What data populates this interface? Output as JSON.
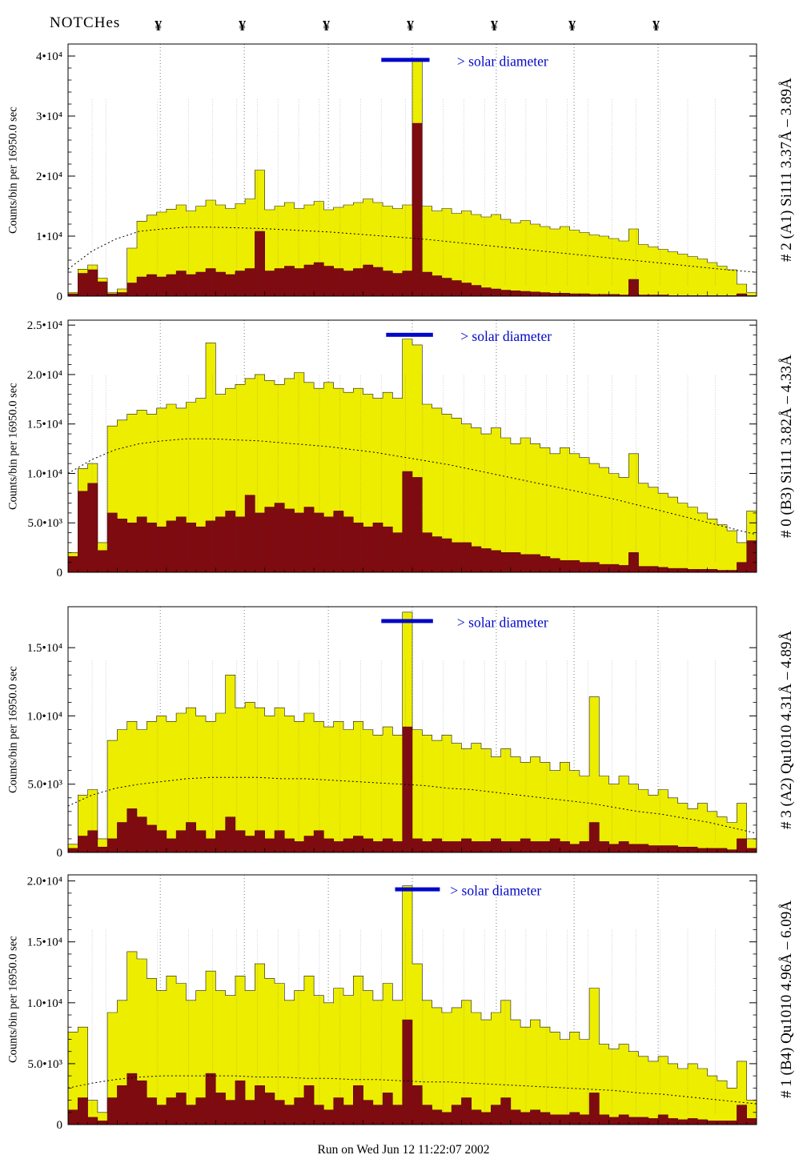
{
  "header": {
    "notches_label": "NOTCHes",
    "notch_symbol": "¥",
    "notch_positions": [
      0.134,
      0.256,
      0.378,
      0.5,
      0.622,
      0.735,
      0.857
    ]
  },
  "solar": {
    "label": "> solar diameter",
    "color": "#0008c8"
  },
  "footer": {
    "caption": "Run on Wed Jun 12 11:22:07 2002"
  },
  "colors": {
    "yellow_fill": "#eded00",
    "dark_red_fill": "#7e0b10",
    "outline": "#1a1a1a",
    "notch_line": "#777777",
    "annotation_mark": "#3a3a9a"
  },
  "annotation_columns": [
    0.035,
    0.055,
    0.13,
    0.175,
    0.21,
    0.245,
    0.275,
    0.305,
    0.335,
    0.365,
    0.395,
    0.425,
    0.455,
    0.49,
    0.515,
    0.545,
    0.575,
    0.605,
    0.635,
    0.665,
    0.695,
    0.725,
    0.755,
    0.79,
    0.825,
    0.86,
    0.9,
    0.94
  ],
  "chart_data": [
    {
      "type": "bar",
      "title": "# 2 (A1) Si111  3.37Å – 3.89Å",
      "ylabel": "Counts/bin per  16950.0 sec",
      "xlabel": "",
      "ylim": [
        0,
        42000
      ],
      "values_scale": 1000,
      "grid": "notch-verticals-only",
      "yticks": [
        {
          "value": 0,
          "label": "0"
        },
        {
          "value": 10,
          "label": "1•10⁴"
        },
        {
          "value": 20,
          "label": "2•10⁴"
        },
        {
          "value": 30,
          "label": "3•10⁴"
        },
        {
          "value": 40,
          "label": "4•10⁴"
        }
      ],
      "solar_bar": {
        "x0": 0.455,
        "x1": 0.525,
        "label_x": 0.565,
        "y_frac": 0.055
      },
      "series": [
        {
          "name": "total-histogram",
          "color": "#eded00",
          "values": [
            0.6,
            4.5,
            5.2,
            3.0,
            0.6,
            1.2,
            8.0,
            12.5,
            13.5,
            14.0,
            14.5,
            15.2,
            14.2,
            15.0,
            16.0,
            15.2,
            14.6,
            15.4,
            16.2,
            21.0,
            14.4,
            15.0,
            15.6,
            14.6,
            15.2,
            15.8,
            14.4,
            14.8,
            15.2,
            15.6,
            16.2,
            15.6,
            15.0,
            14.6,
            15.2,
            39.5,
            15.0,
            14.2,
            14.6,
            13.8,
            14.2,
            13.6,
            13.2,
            13.6,
            12.8,
            12.2,
            12.6,
            12.0,
            11.6,
            11.2,
            11.6,
            11.0,
            10.6,
            10.2,
            10.0,
            9.6,
            9.2,
            11.2,
            8.6,
            8.2,
            7.8,
            7.4,
            7.0,
            6.6,
            6.2,
            5.6,
            5.0,
            4.4,
            2.0,
            0.6
          ]
        },
        {
          "name": "background-histogram",
          "color": "#7e0b10",
          "values": [
            0.4,
            3.8,
            4.4,
            2.4,
            0.4,
            0.6,
            2.2,
            3.2,
            3.6,
            3.2,
            3.6,
            4.2,
            3.6,
            4.0,
            4.6,
            4.0,
            3.6,
            4.2,
            4.6,
            10.8,
            4.2,
            4.6,
            5.0,
            4.6,
            5.2,
            5.6,
            5.0,
            4.6,
            4.2,
            4.6,
            5.2,
            4.8,
            4.2,
            3.8,
            4.2,
            28.8,
            4.0,
            3.4,
            3.0,
            2.6,
            2.2,
            1.8,
            1.4,
            1.2,
            1.0,
            0.9,
            0.8,
            0.7,
            0.6,
            0.5,
            0.5,
            0.4,
            0.4,
            0.3,
            0.3,
            0.3,
            0.2,
            2.8,
            0.2,
            0.2,
            0.2,
            0.1,
            0.1,
            0.1,
            0.1,
            0.1,
            0.1,
            0.1,
            0.4,
            0.1
          ]
        },
        {
          "name": "smooth-envelope",
          "style": "dotted",
          "values": [
            4.5,
            7.5,
            9.5,
            10.8,
            11.2,
            11.5,
            11.5,
            11.4,
            11.3,
            11.1,
            10.9,
            10.7,
            10.4,
            10.1,
            9.8,
            9.5,
            9.1,
            8.7,
            8.3,
            7.9,
            7.5,
            7.1,
            6.7,
            6.3,
            5.9,
            5.5,
            5.1,
            4.7,
            4.3,
            4.0
          ]
        }
      ]
    },
    {
      "type": "bar",
      "title": "# 0 (B3) Si111  3.82Å – 4.33Å",
      "ylabel": "Counts/bin per  16950.0 sec",
      "xlabel": "",
      "ylim": [
        0,
        25500
      ],
      "values_scale": 1000,
      "grid": "notch-verticals-only",
      "yticks": [
        {
          "value": 0,
          "label": "0"
        },
        {
          "value": 5,
          "label": "5.0•10³"
        },
        {
          "value": 10,
          "label": "1.0•10⁴"
        },
        {
          "value": 15,
          "label": "1.5•10⁴"
        },
        {
          "value": 20,
          "label": "2.0•10⁴"
        },
        {
          "value": 25,
          "label": "2.5•10⁴"
        }
      ],
      "solar_bar": {
        "x0": 0.462,
        "x1": 0.53,
        "label_x": 0.57,
        "y_frac": 0.05
      },
      "series": [
        {
          "name": "total-histogram",
          "color": "#eded00",
          "values": [
            2.0,
            10.5,
            11.0,
            3.0,
            14.8,
            15.4,
            16.0,
            16.4,
            16.0,
            16.6,
            17.0,
            16.6,
            17.2,
            17.6,
            23.2,
            18.0,
            18.6,
            19.0,
            19.6,
            20.0,
            19.4,
            19.0,
            19.6,
            20.2,
            19.2,
            18.6,
            19.2,
            18.6,
            18.2,
            18.6,
            18.0,
            17.6,
            18.2,
            17.6,
            23.6,
            23.0,
            17.0,
            16.6,
            16.0,
            15.6,
            15.0,
            14.6,
            14.0,
            14.6,
            13.6,
            13.0,
            13.6,
            13.0,
            12.6,
            12.0,
            12.6,
            12.0,
            11.6,
            11.0,
            10.6,
            10.0,
            9.6,
            12.0,
            9.0,
            8.6,
            8.0,
            7.6,
            7.0,
            6.6,
            6.0,
            5.4,
            4.8,
            4.2,
            3.0,
            6.2
          ]
        },
        {
          "name": "background-histogram",
          "color": "#7e0b10",
          "values": [
            1.6,
            8.2,
            9.0,
            2.2,
            6.0,
            5.4,
            5.0,
            5.6,
            5.0,
            4.6,
            5.2,
            5.6,
            5.0,
            4.6,
            5.2,
            5.6,
            6.2,
            5.6,
            7.8,
            6.0,
            6.6,
            7.0,
            6.4,
            6.0,
            6.6,
            6.0,
            5.6,
            6.2,
            5.6,
            5.0,
            4.6,
            5.0,
            4.6,
            4.0,
            10.2,
            9.6,
            4.0,
            3.6,
            3.4,
            3.0,
            3.0,
            2.6,
            2.4,
            2.2,
            2.0,
            2.0,
            1.8,
            1.8,
            1.6,
            1.4,
            1.2,
            1.2,
            1.0,
            1.0,
            0.8,
            0.8,
            0.7,
            2.0,
            0.6,
            0.6,
            0.5,
            0.4,
            0.4,
            0.3,
            0.3,
            0.3,
            0.2,
            0.2,
            1.0,
            3.2
          ]
        },
        {
          "name": "smooth-envelope",
          "style": "dotted",
          "values": [
            10.0,
            11.4,
            12.4,
            13.0,
            13.3,
            13.5,
            13.5,
            13.4,
            13.3,
            13.1,
            12.9,
            12.7,
            12.4,
            12.1,
            11.7,
            11.3,
            10.9,
            10.4,
            9.9,
            9.4,
            8.9,
            8.4,
            7.9,
            7.4,
            6.8,
            6.2,
            5.6,
            5.0,
            4.4,
            3.8
          ]
        }
      ]
    },
    {
      "type": "bar",
      "title": "# 3 (A2) Qu1010  4.31Å – 4.89Å",
      "ylabel": "Counts/bin per  16950.0 sec",
      "xlabel": "",
      "ylim": [
        0,
        18000
      ],
      "values_scale": 1000,
      "grid": "notch-verticals-only",
      "yticks": [
        {
          "value": 0,
          "label": "0"
        },
        {
          "value": 5,
          "label": "5.0•10³"
        },
        {
          "value": 10,
          "label": "1.0•10⁴"
        },
        {
          "value": 15,
          "label": "1.5•10⁴"
        }
      ],
      "solar_bar": {
        "x0": 0.455,
        "x1": 0.53,
        "label_x": 0.565,
        "y_frac": 0.05
      },
      "series": [
        {
          "name": "total-histogram",
          "color": "#eded00",
          "values": [
            0.6,
            4.2,
            4.6,
            1.0,
            8.2,
            9.0,
            9.6,
            9.0,
            9.6,
            10.0,
            9.6,
            10.2,
            10.6,
            10.0,
            9.6,
            10.2,
            13.0,
            10.6,
            11.0,
            10.6,
            10.0,
            10.6,
            10.0,
            9.6,
            10.2,
            9.6,
            9.2,
            9.6,
            9.0,
            9.6,
            9.0,
            8.6,
            9.2,
            8.6,
            17.6,
            9.0,
            8.6,
            8.2,
            8.6,
            8.0,
            7.6,
            8.0,
            7.6,
            7.0,
            7.6,
            7.0,
            6.6,
            7.0,
            6.6,
            6.0,
            6.6,
            6.0,
            5.6,
            11.4,
            5.6,
            5.0,
            5.6,
            5.0,
            4.6,
            4.2,
            4.6,
            4.0,
            3.6,
            3.2,
            3.6,
            3.0,
            2.6,
            2.2,
            3.6,
            1.0
          ]
        },
        {
          "name": "background-histogram",
          "color": "#7e0b10",
          "values": [
            0.3,
            1.2,
            1.6,
            0.4,
            1.0,
            2.2,
            3.2,
            2.6,
            2.0,
            1.6,
            1.0,
            1.6,
            2.2,
            1.6,
            1.0,
            1.6,
            2.6,
            1.6,
            1.2,
            1.6,
            1.0,
            1.6,
            1.0,
            0.8,
            1.2,
            1.6,
            1.0,
            0.8,
            1.0,
            1.2,
            1.0,
            0.8,
            1.0,
            0.8,
            9.2,
            1.0,
            0.8,
            1.0,
            0.8,
            0.8,
            1.0,
            0.8,
            0.8,
            1.0,
            0.8,
            0.8,
            1.0,
            0.8,
            0.8,
            1.0,
            0.8,
            0.6,
            0.8,
            2.2,
            0.8,
            0.6,
            0.8,
            0.6,
            0.6,
            0.5,
            0.5,
            0.5,
            0.4,
            0.4,
            0.3,
            0.3,
            0.3,
            0.2,
            1.0,
            0.3
          ]
        },
        {
          "name": "smooth-envelope",
          "style": "dotted",
          "values": [
            3.4,
            4.2,
            4.7,
            5.0,
            5.2,
            5.4,
            5.5,
            5.5,
            5.5,
            5.4,
            5.4,
            5.3,
            5.2,
            5.1,
            5.0,
            4.9,
            4.7,
            4.6,
            4.4,
            4.2,
            4.0,
            3.8,
            3.6,
            3.3,
            3.0,
            2.8,
            2.5,
            2.2,
            1.8,
            1.4
          ]
        }
      ]
    },
    {
      "type": "bar",
      "title": "# 1 (B4) Qu1010  4.96Å – 6.09Å",
      "ylabel": "Counts/bin per  16950.0 sec",
      "xlabel": "",
      "ylim": [
        0,
        20500
      ],
      "values_scale": 1000,
      "grid": "notch-verticals-only",
      "yticks": [
        {
          "value": 0,
          "label": "0"
        },
        {
          "value": 5,
          "label": "5.0•10³"
        },
        {
          "value": 10,
          "label": "1.0•10⁴"
        },
        {
          "value": 15,
          "label": "1.5•10⁴"
        },
        {
          "value": 20,
          "label": "2.0•10⁴"
        }
      ],
      "solar_bar": {
        "x0": 0.475,
        "x1": 0.54,
        "label_x": 0.555,
        "y_frac": 0.05
      },
      "series": [
        {
          "name": "total-histogram",
          "color": "#eded00",
          "values": [
            7.6,
            8.0,
            2.0,
            1.0,
            9.2,
            10.2,
            14.2,
            13.6,
            12.0,
            11.0,
            12.2,
            11.6,
            10.2,
            11.0,
            12.6,
            11.0,
            10.6,
            12.2,
            11.0,
            13.2,
            12.0,
            11.6,
            10.2,
            11.0,
            12.2,
            10.6,
            10.0,
            11.2,
            10.6,
            12.2,
            11.0,
            10.2,
            11.6,
            10.2,
            19.6,
            13.2,
            10.2,
            9.6,
            9.2,
            9.6,
            10.2,
            9.2,
            8.6,
            9.2,
            10.2,
            8.6,
            8.0,
            8.6,
            8.0,
            7.6,
            7.0,
            7.6,
            7.0,
            11.2,
            6.6,
            6.2,
            6.6,
            6.0,
            5.6,
            5.2,
            5.6,
            5.0,
            4.6,
            5.0,
            4.6,
            4.0,
            3.6,
            3.0,
            5.2,
            2.0
          ]
        },
        {
          "name": "background-histogram",
          "color": "#7e0b10",
          "values": [
            1.2,
            2.2,
            0.6,
            0.3,
            2.2,
            3.2,
            4.2,
            3.6,
            2.2,
            1.6,
            2.2,
            2.6,
            1.6,
            2.2,
            4.2,
            2.6,
            2.0,
            3.6,
            2.0,
            3.2,
            2.6,
            2.0,
            1.6,
            2.2,
            3.2,
            1.6,
            1.2,
            2.2,
            1.6,
            3.2,
            2.0,
            1.6,
            2.6,
            1.6,
            8.6,
            3.2,
            1.6,
            1.2,
            1.0,
            1.6,
            2.2,
            1.2,
            1.0,
            1.6,
            2.2,
            1.2,
            1.0,
            1.2,
            1.0,
            0.8,
            0.8,
            1.0,
            0.8,
            2.6,
            0.8,
            0.6,
            0.8,
            0.6,
            0.6,
            0.5,
            0.8,
            0.5,
            0.4,
            0.5,
            0.4,
            0.3,
            0.3,
            0.3,
            1.6,
            0.5
          ]
        },
        {
          "name": "smooth-envelope",
          "style": "dotted",
          "values": [
            3.0,
            3.4,
            3.7,
            3.9,
            4.0,
            4.0,
            4.0,
            4.0,
            3.9,
            3.9,
            3.8,
            3.8,
            3.7,
            3.7,
            3.6,
            3.5,
            3.5,
            3.4,
            3.3,
            3.2,
            3.1,
            3.0,
            2.9,
            2.8,
            2.6,
            2.5,
            2.3,
            2.1,
            1.9,
            1.7
          ]
        }
      ]
    }
  ]
}
